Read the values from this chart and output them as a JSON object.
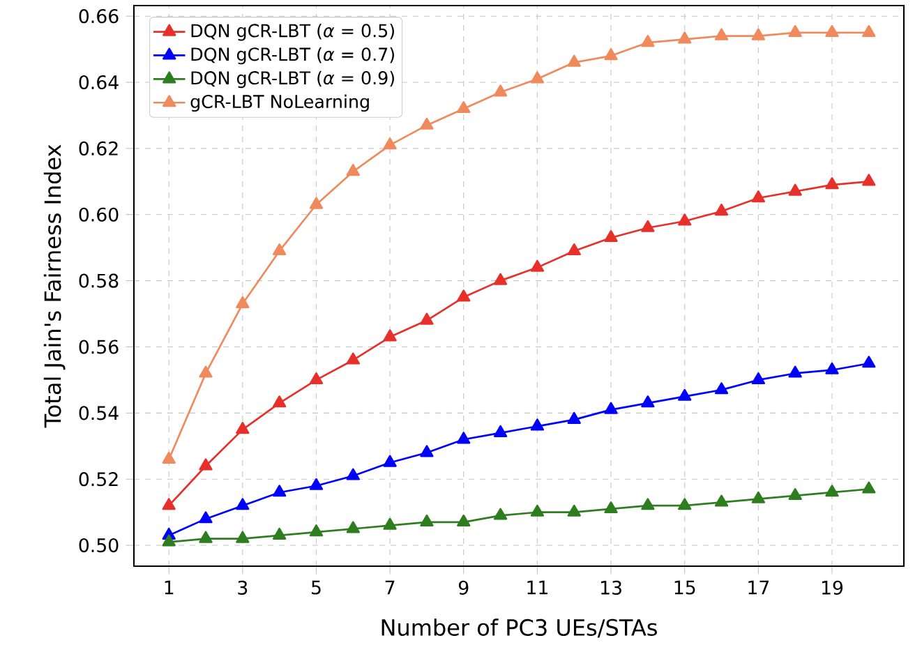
{
  "chart_data": {
    "type": "line",
    "xlabel": "Number of PC3 UEs/STAs",
    "ylabel": "Total Jain's Fairness Index",
    "x": [
      1,
      2,
      3,
      4,
      5,
      6,
      7,
      8,
      9,
      10,
      11,
      12,
      13,
      14,
      15,
      16,
      17,
      18,
      19,
      20
    ],
    "xlim": [
      0.05,
      20.95
    ],
    "xticks": [
      1,
      3,
      5,
      7,
      9,
      11,
      13,
      15,
      17,
      19
    ],
    "ylim": [
      0.4937,
      0.6632
    ],
    "yticks": [
      {
        "value": 0.5,
        "label": "0.50"
      },
      0.52,
      0.54,
      0.56,
      0.58,
      {
        "value": 0.6,
        "label": "0.60"
      },
      0.62,
      0.64,
      0.66
    ],
    "grid": true,
    "legend": "top left",
    "marker": "triangle",
    "line_style": "solid",
    "series": [
      {
        "name": "DQN gCR-LBT (*α* = 0.5)",
        "color": "#e8302a",
        "values": [
          0.512,
          0.524,
          0.535,
          0.543,
          0.55,
          0.556,
          0.563,
          0.568,
          0.575,
          0.58,
          0.584,
          0.589,
          0.593,
          0.596,
          0.598,
          0.601,
          0.605,
          0.607,
          0.609,
          0.61
        ]
      },
      {
        "name": "DQN gCR-LBT (*α* = 0.7)",
        "color": "#0000ff",
        "values": [
          0.503,
          0.508,
          0.512,
          0.516,
          0.518,
          0.521,
          0.525,
          0.528,
          0.532,
          0.534,
          0.536,
          0.538,
          0.541,
          0.543,
          0.545,
          0.547,
          0.55,
          0.552,
          0.553,
          0.555
        ]
      },
      {
        "name": "DQN gCR-LBT (*α* = 0.9)",
        "color": "#2e7d1e",
        "values": [
          0.501,
          0.502,
          0.502,
          0.503,
          0.504,
          0.505,
          0.506,
          0.507,
          0.507,
          0.509,
          0.51,
          0.51,
          0.511,
          0.512,
          0.512,
          0.513,
          0.514,
          0.515,
          0.516,
          0.517
        ]
      },
      {
        "name": "gCR-LBT NoLearning",
        "color": "#f08a5d",
        "values": [
          0.526,
          0.552,
          0.573,
          0.589,
          0.603,
          0.613,
          0.621,
          0.627,
          0.632,
          0.637,
          0.641,
          0.646,
          0.648,
          0.652,
          0.653,
          0.654,
          0.654,
          0.655,
          0.655,
          0.655
        ]
      }
    ]
  }
}
